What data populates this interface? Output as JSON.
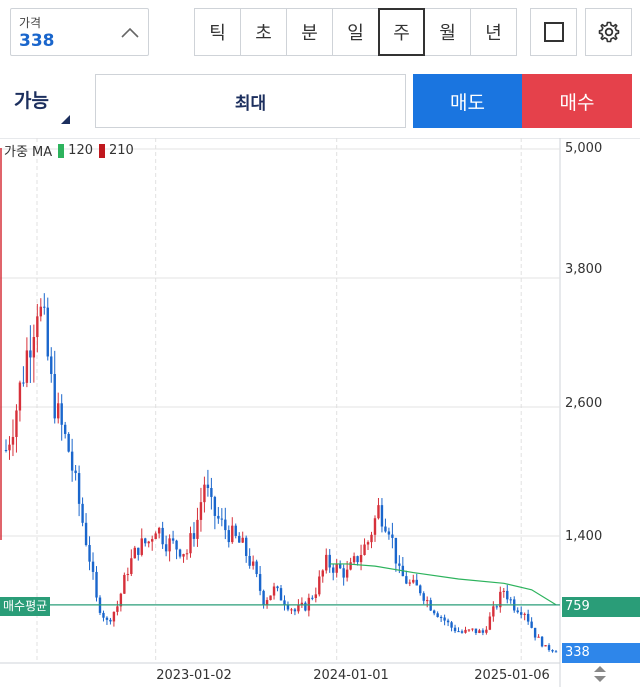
{
  "price": {
    "label": "가격",
    "value": "338"
  },
  "periods": [
    {
      "label": "틱",
      "active": false
    },
    {
      "label": "초",
      "active": false
    },
    {
      "label": "분",
      "active": false
    },
    {
      "label": "일",
      "active": false
    },
    {
      "label": "주",
      "active": true
    },
    {
      "label": "월",
      "active": false
    },
    {
      "label": "년",
      "active": false
    }
  ],
  "order": {
    "available_label": "가능",
    "quantity_label": "최대",
    "sell_label": "매도",
    "buy_label": "매수",
    "sell_color": "#1a75e0",
    "buy_color": "#e5414b"
  },
  "chart_data": {
    "type": "candlestick",
    "legend": {
      "prefix": "가중 MA",
      "ma_fast": "120",
      "ma_slow": "210",
      "ma_fast_color": "#2db35d",
      "ma_slow_color": "#c0181e"
    },
    "y_ticks": [
      "5,000",
      "3,800",
      "2,600",
      "1,400"
    ],
    "ylim": [
      200,
      5000
    ],
    "x_ticks": [
      {
        "label": "2023-01-02",
        "x": "2023-01-02"
      },
      {
        "label": "2024-01-01",
        "x": "2024-01-01"
      },
      {
        "label": "2025-01-06",
        "x": "2025-01-06"
      }
    ],
    "x_range": [
      "2022-03-07",
      "2025-03-17"
    ],
    "avg_buy": {
      "label": "매수평균",
      "value": 759,
      "display": "759",
      "color": "#2a9d78"
    },
    "current": {
      "value": 338,
      "display": "338",
      "color": "#2e86ea"
    },
    "up_color": "#d6303a",
    "down_color": "#1a66cc",
    "ma120": [
      {
        "x": "2023-12-18",
        "y": 1140
      },
      {
        "x": "2024-01-22",
        "y": 1140
      },
      {
        "x": "2024-03-18",
        "y": 1120
      },
      {
        "x": "2024-06-03",
        "y": 1060
      },
      {
        "x": "2024-09-02",
        "y": 1000
      },
      {
        "x": "2024-12-02",
        "y": 960
      },
      {
        "x": "2025-01-27",
        "y": 900
      },
      {
        "x": "2025-03-17",
        "y": 760
      }
    ],
    "trend": [
      {
        "x": "2022-03-07",
        "y": 2200
      },
      {
        "x": "2022-03-28",
        "y": 2600
      },
      {
        "x": "2022-04-18",
        "y": 3100
      },
      {
        "x": "2022-05-09",
        "y": 3600
      },
      {
        "x": "2022-05-23",
        "y": 3300
      },
      {
        "x": "2022-06-06",
        "y": 2800
      },
      {
        "x": "2022-06-20",
        "y": 2500
      },
      {
        "x": "2022-07-11",
        "y": 2200
      },
      {
        "x": "2022-08-01",
        "y": 1700
      },
      {
        "x": "2022-08-22",
        "y": 1200
      },
      {
        "x": "2022-09-05",
        "y": 800
      },
      {
        "x": "2022-09-26",
        "y": 600
      },
      {
        "x": "2022-10-17",
        "y": 750
      },
      {
        "x": "2022-11-07",
        "y": 1100
      },
      {
        "x": "2022-11-28",
        "y": 1300
      },
      {
        "x": "2022-12-19",
        "y": 1350
      },
      {
        "x": "2023-01-02",
        "y": 1500
      },
      {
        "x": "2023-01-23",
        "y": 1350
      },
      {
        "x": "2023-02-13",
        "y": 1300
      },
      {
        "x": "2023-03-06",
        "y": 1250
      },
      {
        "x": "2023-03-27",
        "y": 1550
      },
      {
        "x": "2023-04-10",
        "y": 1900
      },
      {
        "x": "2023-04-24",
        "y": 1650
      },
      {
        "x": "2023-05-15",
        "y": 1500
      },
      {
        "x": "2023-06-05",
        "y": 1400
      },
      {
        "x": "2023-06-26",
        "y": 1300
      },
      {
        "x": "2023-07-17",
        "y": 1100
      },
      {
        "x": "2023-08-07",
        "y": 800
      },
      {
        "x": "2023-08-28",
        "y": 900
      },
      {
        "x": "2023-09-18",
        "y": 800
      },
      {
        "x": "2023-10-09",
        "y": 700
      },
      {
        "x": "2023-10-30",
        "y": 750
      },
      {
        "x": "2023-11-20",
        "y": 900
      },
      {
        "x": "2023-12-11",
        "y": 1150
      },
      {
        "x": "2024-01-01",
        "y": 1100
      },
      {
        "x": "2024-01-22",
        "y": 1050
      },
      {
        "x": "2024-02-12",
        "y": 1200
      },
      {
        "x": "2024-03-04",
        "y": 1350
      },
      {
        "x": "2024-03-25",
        "y": 1650
      },
      {
        "x": "2024-04-15",
        "y": 1500
      },
      {
        "x": "2024-05-06",
        "y": 1050
      },
      {
        "x": "2024-05-27",
        "y": 950
      },
      {
        "x": "2024-06-17",
        "y": 900
      },
      {
        "x": "2024-07-08",
        "y": 750
      },
      {
        "x": "2024-07-29",
        "y": 650
      },
      {
        "x": "2024-08-19",
        "y": 550
      },
      {
        "x": "2024-09-09",
        "y": 500
      },
      {
        "x": "2024-09-30",
        "y": 520
      },
      {
        "x": "2024-10-21",
        "y": 500
      },
      {
        "x": "2024-11-11",
        "y": 700
      },
      {
        "x": "2024-12-02",
        "y": 900
      },
      {
        "x": "2024-12-23",
        "y": 750
      },
      {
        "x": "2025-01-13",
        "y": 700
      },
      {
        "x": "2025-02-03",
        "y": 480
      },
      {
        "x": "2025-02-24",
        "y": 360
      },
      {
        "x": "2025-03-17",
        "y": 338
      }
    ]
  }
}
